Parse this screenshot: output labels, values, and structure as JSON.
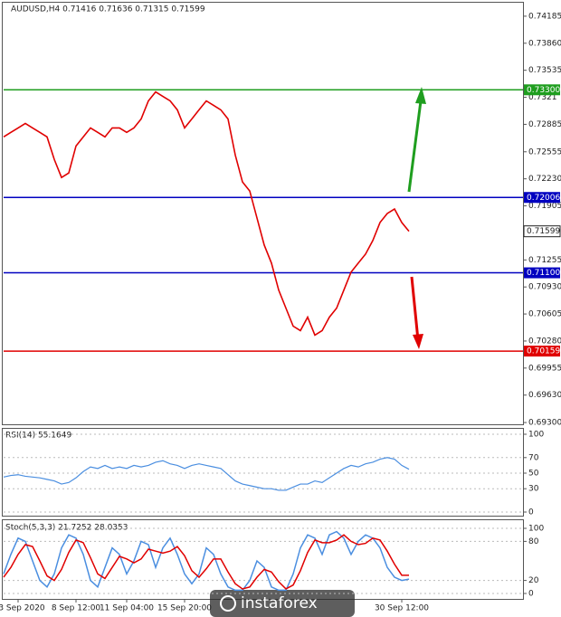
{
  "chart_data": [
    {
      "type": "line",
      "title": "AUDUSD,H4  0.71416 0.71636 0.71315 0.71599",
      "color": "#e00000",
      "categories": [
        null,
        null,
        "3 Sep 2020",
        null,
        null,
        null,
        null,
        null,
        null,
        null,
        "8 Sep 12:00",
        null,
        null,
        null,
        null,
        null,
        null,
        "11 Sep 04:00",
        null,
        null,
        null,
        null,
        null,
        null,
        null,
        "15 Sep 20:00",
        null,
        null,
        null,
        null,
        null,
        null,
        null,
        null,
        null,
        null,
        null,
        null,
        null,
        null,
        null,
        null,
        null,
        null,
        null,
        null,
        null,
        null,
        null,
        null,
        null,
        null,
        null,
        null,
        null,
        "30 Sep 12:00",
        null
      ],
      "values": [
        0.72734,
        0.72788,
        0.72842,
        0.72896,
        0.72842,
        0.72788,
        0.72734,
        0.72463,
        0.72246,
        0.723,
        0.72625,
        0.72734,
        0.72842,
        0.72788,
        0.72734,
        0.72842,
        0.72842,
        0.72788,
        0.72842,
        0.7295,
        0.73167,
        0.73275,
        0.73221,
        0.73167,
        0.73059,
        0.72842,
        0.7295,
        0.73059,
        0.73167,
        0.73113,
        0.73059,
        0.7295,
        0.72517,
        0.72192,
        0.72084,
        0.71759,
        0.71434,
        0.71217,
        0.70892,
        0.70675,
        0.70459,
        0.70405,
        0.70567,
        0.70351,
        0.70405,
        0.70567,
        0.70675,
        0.70892,
        0.71109,
        0.71217,
        0.71325,
        0.71488,
        0.71705,
        0.71813,
        0.71867,
        0.71705,
        0.71599
      ],
      "ylim": [
        0.69268,
        0.74358
      ],
      "yticks": [
        0.74185,
        {
          "value": 0.7386,
          "label": "0.73860"
        },
        0.73535,
        0.7321,
        0.72885,
        0.72555,
        {
          "value": 0.7223,
          "label": "0.72230"
        },
        0.71905,
        0.71255,
        {
          "value": 0.7093,
          "label": "0.70930"
        },
        0.70605,
        {
          "value": 0.7028,
          "label": "0.70280"
        },
        0.69955,
        {
          "value": 0.6963,
          "label": "0.69630"
        },
        {
          "value": 0.693,
          "label": "0.69300"
        }
      ],
      "levels": {
        "values": [
          0.733,
          0.72006,
          0.711,
          0.70159
        ],
        "value_labels": [
          "0.73300",
          "0.72006",
          "0.71100",
          "0.70159"
        ],
        "colors": [
          "#1f9e1f",
          "#0000c0",
          "#0000c0",
          "#e00000"
        ]
      },
      "current_price": 0.71599,
      "watermark": "instaforex"
    },
    {
      "type": "line",
      "title": "RSI(14) 55.1649",
      "color": "#4a8ee0",
      "values": [
        45,
        47,
        48,
        46,
        45,
        44,
        42,
        40,
        36,
        38,
        44,
        52,
        58,
        56,
        60,
        56,
        58,
        56,
        60,
        58,
        60,
        64,
        66,
        62,
        60,
        56,
        60,
        62,
        60,
        58,
        56,
        48,
        40,
        36,
        34,
        32,
        30,
        30,
        28,
        28,
        32,
        36,
        36,
        40,
        38,
        44,
        50,
        56,
        60,
        58,
        62,
        64,
        68,
        70,
        68,
        60,
        55
      ],
      "ylim": [
        0,
        100
      ],
      "yticks": [
        0,
        30,
        50,
        70,
        100
      ]
    },
    {
      "type": "line",
      "title": "Stoch(5,3,3) 21.7252 28.0353",
      "series": [
        {
          "color": "#4a8ee0",
          "values": [
            30,
            60,
            85,
            80,
            50,
            20,
            10,
            30,
            70,
            90,
            85,
            60,
            20,
            10,
            40,
            70,
            60,
            30,
            50,
            80,
            75,
            40,
            70,
            85,
            60,
            30,
            15,
            30,
            70,
            60,
            30,
            10,
            5,
            5,
            20,
            50,
            40,
            10,
            5,
            5,
            30,
            70,
            90,
            85,
            60,
            90,
            95,
            85,
            60,
            80,
            90,
            85,
            70,
            40,
            25,
            20,
            22
          ]
        },
        {
          "color": "#e00000",
          "values": [
            25,
            40,
            60,
            75,
            72,
            50,
            27,
            20,
            37,
            63,
            82,
            78,
            55,
            30,
            23,
            40,
            57,
            53,
            47,
            53,
            68,
            65,
            62,
            65,
            72,
            58,
            35,
            25,
            38,
            53,
            53,
            33,
            15,
            7,
            10,
            25,
            37,
            33,
            18,
            7,
            13,
            35,
            63,
            82,
            78,
            78,
            82,
            90,
            80,
            75,
            77,
            85,
            82,
            65,
            45,
            28,
            28
          ]
        }
      ],
      "ylim": [
        0,
        100
      ],
      "yticks": [
        0,
        20,
        80,
        100
      ]
    }
  ]
}
